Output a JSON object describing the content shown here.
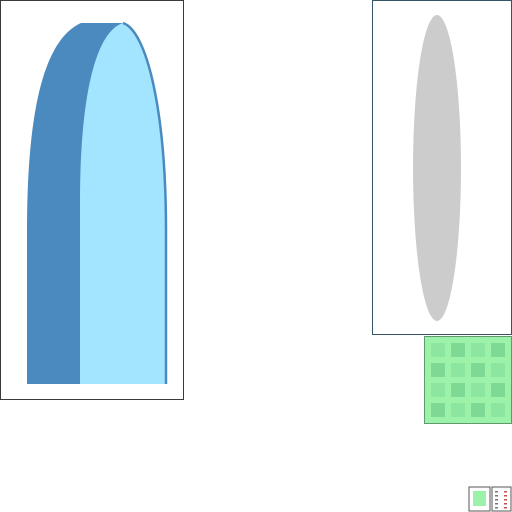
{
  "colors": {
    "background": "#ffffff",
    "panel_border": "#3a3a3a",
    "lens_dark": "#4a8abf",
    "lens_light": "#a3e4ff",
    "ellipse_fill": "#cccccc",
    "pattern_base": "#9cf2a9",
    "pattern_tile": "#7ed994"
  },
  "icons": {
    "left_shape": "half-lens-icon",
    "right_shape": "ellipse-icon",
    "pattern": "checker-pattern-icon",
    "thumbnail": "pattern-thumbnail-icon",
    "list": "list-icon"
  }
}
